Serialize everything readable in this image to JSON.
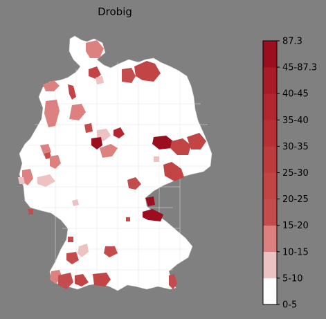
{
  "title": "Drobig",
  "colorbar": {
    "labels": [
      "0-5",
      "5-10",
      "10-15",
      "15-20",
      "20-25",
      "25-30",
      "30-35",
      "35-40",
      "40-45",
      "45-87.3",
      "87.3"
    ],
    "bins": [
      {
        "label": "0-5",
        "color": "#ffffff"
      },
      {
        "label": "5-10",
        "color": "#ecc2c2"
      },
      {
        "label": "10-15",
        "color": "#dc8080"
      },
      {
        "label": "15-20",
        "color": "#c44c4c"
      },
      {
        "label": "20-25",
        "color": "#c24444"
      },
      {
        "label": "25-30",
        "color": "#bd3a3d"
      },
      {
        "label": "30-35",
        "color": "#b83036"
      },
      {
        "label": "35-40",
        "color": "#b1262f"
      },
      {
        "label": "40-45",
        "color": "#a81b27"
      },
      {
        "label": "45-87.3",
        "color": "#9a0e1f"
      }
    ]
  },
  "colors": {
    "background": "#808080",
    "land": "#ffffff",
    "border": "#d8d8d8"
  }
}
